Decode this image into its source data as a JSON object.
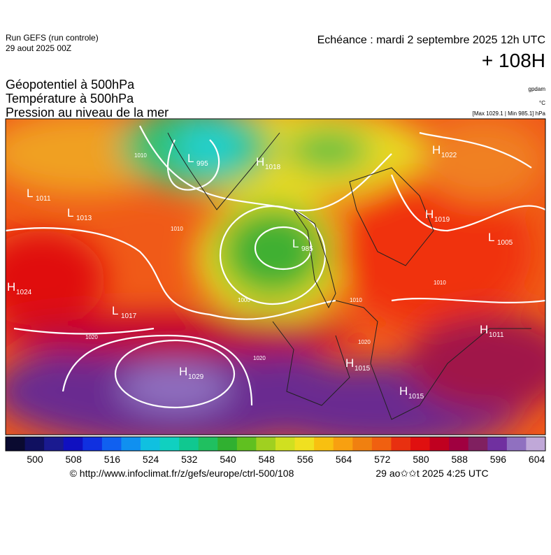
{
  "header": {
    "run": "Run GEFS (run controle)",
    "run_date": "29 aout 2025 00Z",
    "valid": "Echéance : mardi 2 septembre 2025 12h UTC",
    "lead": "+ 108H"
  },
  "legend": {
    "lines": [
      "Géopotentiel à 500hPa",
      "Température à 500hPa",
      "Pression au niveau de la mer"
    ],
    "units": [
      "gpdam",
      "°C",
      "[Max 1029.1 | Min 985.1] hPa"
    ]
  },
  "pressure_centers": [
    {
      "type": "L",
      "value": "1011"
    },
    {
      "type": "L",
      "value": "1013"
    },
    {
      "type": "L",
      "value": "995"
    },
    {
      "type": "H",
      "value": "1018"
    },
    {
      "type": "H",
      "value": "1022"
    },
    {
      "type": "L",
      "value": "985"
    },
    {
      "type": "H",
      "value": "1019"
    },
    {
      "type": "L",
      "value": "1005"
    },
    {
      "type": "H",
      "value": "1024"
    },
    {
      "type": "L",
      "value": "1017"
    },
    {
      "type": "H",
      "value": "1011"
    },
    {
      "type": "H",
      "value": "1029"
    },
    {
      "type": "H",
      "value": "1015"
    },
    {
      "type": "H",
      "value": "1015"
    }
  ],
  "isobar_labels": [
    "1010",
    "1020",
    "1000",
    "1010",
    "1020",
    "1010",
    "1020",
    "1010"
  ],
  "colorbar": {
    "ticks": [
      500,
      508,
      516,
      524,
      532,
      540,
      548,
      556,
      564,
      572,
      580,
      588,
      596,
      604
    ],
    "colors": [
      "#0a0a30",
      "#101060",
      "#1a1a90",
      "#1010c0",
      "#1030e0",
      "#1060f0",
      "#1090f0",
      "#10c0e0",
      "#10d0c0",
      "#10c890",
      "#20c060",
      "#30b030",
      "#60c020",
      "#a0d020",
      "#d0e020",
      "#f0e020",
      "#f8c010",
      "#f8a010",
      "#f08010",
      "#f06010",
      "#e83010",
      "#e01010",
      "#c00020",
      "#a00040",
      "#802060",
      "#7030a0",
      "#9070c0",
      "#c0a8d8"
    ]
  },
  "footer": {
    "url": "© http://www.infoclimat.fr/z/gefs/europe/ctrl-500/108",
    "generated": "29 ao✩✩t 2025  4:25 UTC"
  }
}
